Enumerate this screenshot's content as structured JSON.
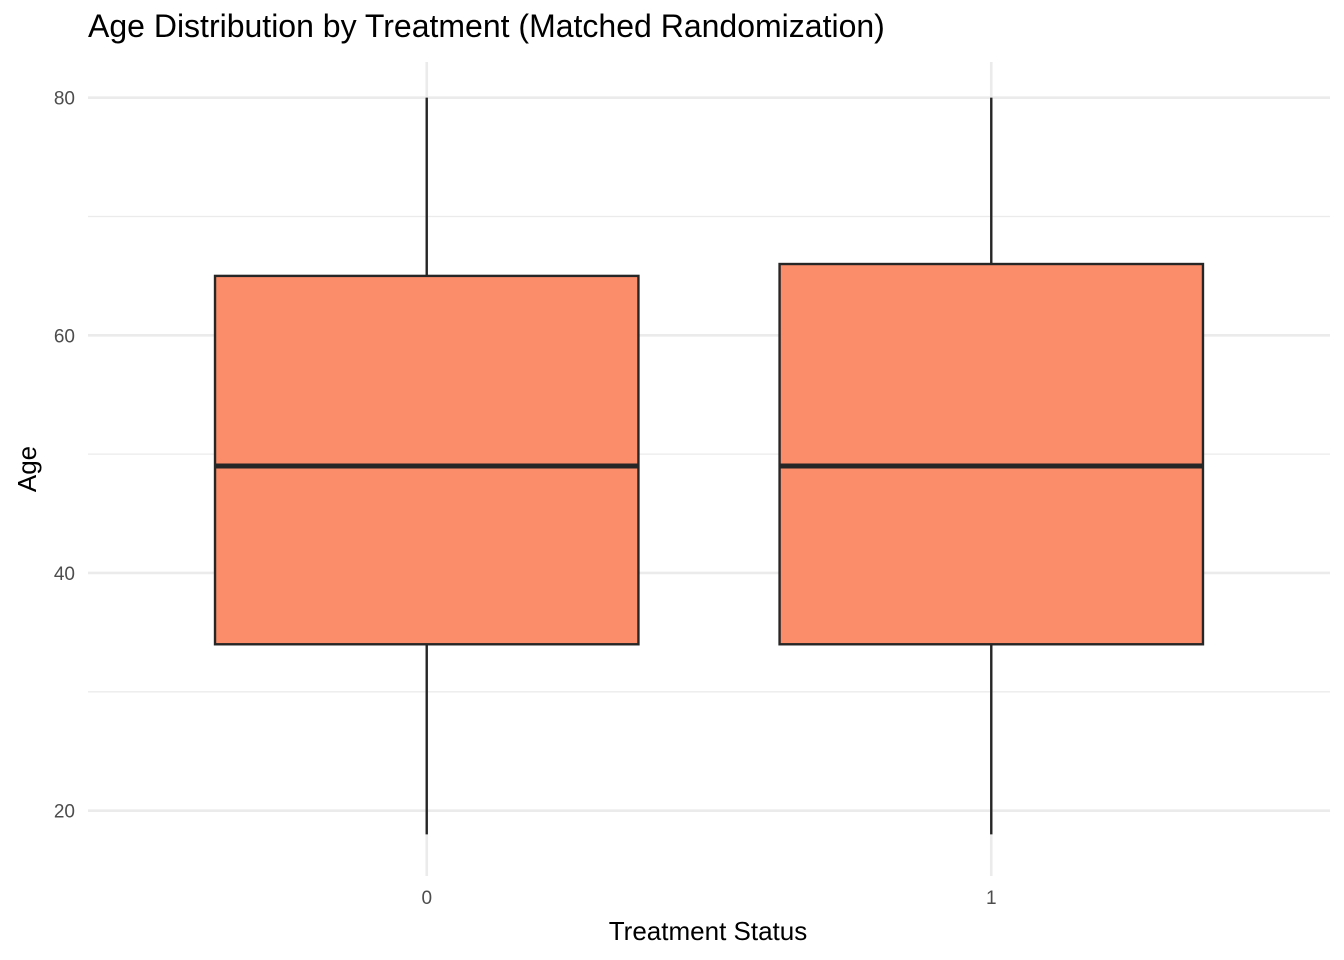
{
  "chart_data": {
    "type": "boxplot",
    "title": "Age Distribution by Treatment (Matched Randomization)",
    "xlabel": "Treatment Status",
    "ylabel": "Age",
    "categories": [
      "0",
      "1"
    ],
    "boxes": [
      {
        "category": "0",
        "min": 18,
        "q1": 34,
        "median": 49,
        "q3": 65,
        "max": 80
      },
      {
        "category": "1",
        "min": 18,
        "q1": 34,
        "median": 49,
        "q3": 66,
        "max": 80
      }
    ],
    "ylim": [
      14.5,
      83
    ],
    "yticks": [
      20,
      40,
      60,
      80
    ],
    "yticks_minor": [
      30,
      50,
      70
    ],
    "grid": true,
    "fill_color": "#FC8D6A",
    "line_color": "#262626",
    "grid_color": "#EBEBEB"
  }
}
